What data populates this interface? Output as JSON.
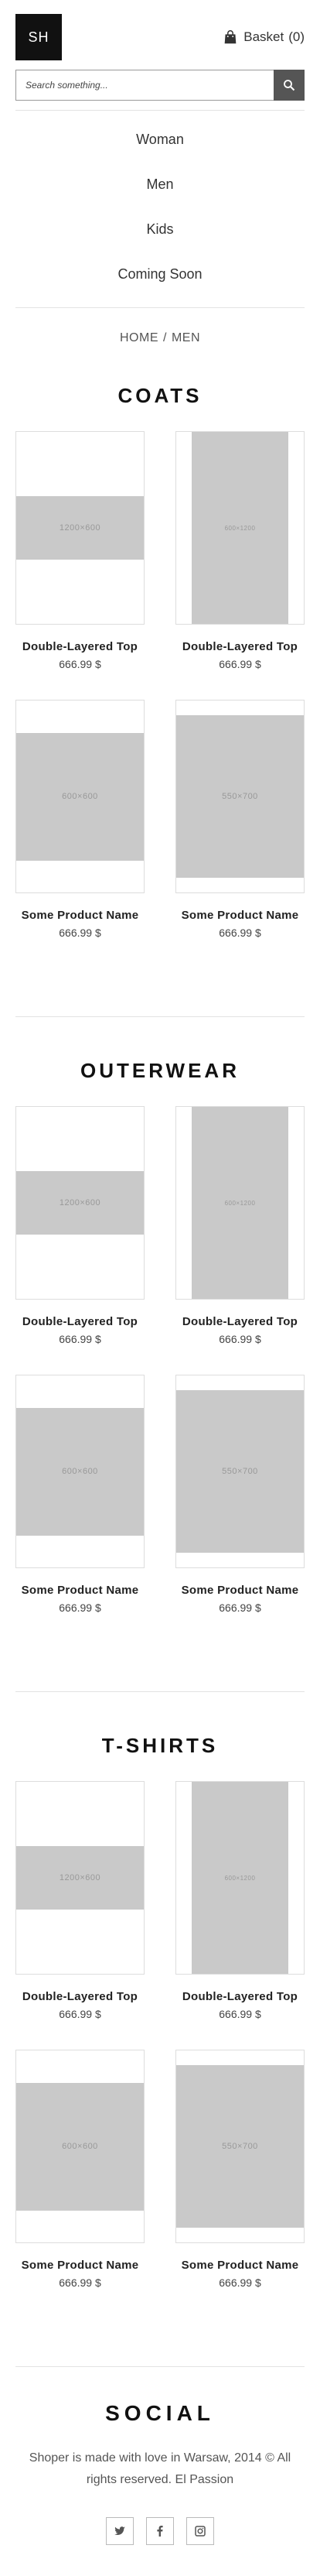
{
  "header": {
    "logo": "SH",
    "basket_label": "Basket",
    "basket_count": "(0)"
  },
  "search": {
    "placeholder": "Search something..."
  },
  "nav": {
    "items": [
      "Woman",
      "Men",
      "Kids",
      "Coming Soon"
    ]
  },
  "breadcrumb": {
    "home": "HOME",
    "separator": "/",
    "current": "MEN"
  },
  "sections": [
    {
      "title": "COATS",
      "products": [
        {
          "name": "Double-Layered Top",
          "price": "666.99 $",
          "placeholder": "1200×600",
          "shape": "wide"
        },
        {
          "name": "Double-Layered Top",
          "price": "666.99 $",
          "placeholder": "600×1200",
          "shape": "tall"
        },
        {
          "name": "Some Product Name",
          "price": "666.99 $",
          "placeholder": "600×600",
          "shape": "square"
        },
        {
          "name": "Some Product Name",
          "price": "666.99 $",
          "placeholder": "550×700",
          "shape": "portrait"
        }
      ]
    },
    {
      "title": "OUTERWEAR",
      "products": [
        {
          "name": "Double-Layered Top",
          "price": "666.99 $",
          "placeholder": "1200×600",
          "shape": "wide"
        },
        {
          "name": "Double-Layered Top",
          "price": "666.99 $",
          "placeholder": "600×1200",
          "shape": "tall"
        },
        {
          "name": "Some Product Name",
          "price": "666.99 $",
          "placeholder": "600×600",
          "shape": "square"
        },
        {
          "name": "Some Product Name",
          "price": "666.99 $",
          "placeholder": "550×700",
          "shape": "portrait"
        }
      ]
    },
    {
      "title": "T-SHIRTS",
      "products": [
        {
          "name": "Double-Layered Top",
          "price": "666.99 $",
          "placeholder": "1200×600",
          "shape": "wide"
        },
        {
          "name": "Double-Layered Top",
          "price": "666.99 $",
          "placeholder": "600×1200",
          "shape": "tall"
        },
        {
          "name": "Some Product Name",
          "price": "666.99 $",
          "placeholder": "600×600",
          "shape": "square"
        },
        {
          "name": "Some Product Name",
          "price": "666.99 $",
          "placeholder": "550×700",
          "shape": "portrait"
        }
      ]
    }
  ],
  "social": {
    "title": "SOCIAL",
    "footer_text": "Shoper is made with love in Warsaw, 2014 © All rights reserved. El Passion",
    "icons": [
      "twitter-icon",
      "facebook-icon",
      "instagram-icon"
    ]
  },
  "colors": {
    "logo_bg": "#111111",
    "search_button": "#555555",
    "placeholder_bg": "#c9c9c9"
  }
}
